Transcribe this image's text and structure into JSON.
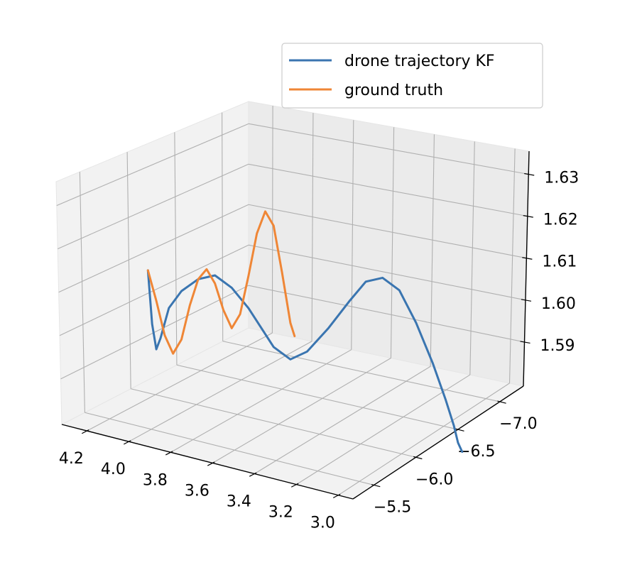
{
  "chart_data": {
    "type": "line",
    "projection": "3d",
    "xlabel": "",
    "ylabel": "",
    "zlabel": "",
    "x_ticks": [
      "4.2",
      "4.0",
      "3.8",
      "3.6",
      "3.4",
      "3.2",
      "3.0"
    ],
    "y_ticks": [
      "−5.5",
      "−6.0",
      "−6.5",
      "−7.0"
    ],
    "z_ticks": [
      "1.59",
      "1.60",
      "1.61",
      "1.62",
      "1.63"
    ],
    "grid": true,
    "legend_position": "upper-right",
    "series": [
      {
        "name": "drone trajectory KF",
        "color": "#3a75b0",
        "points_xyz": [
          [
            4.26,
            -6.05,
            1.609
          ],
          [
            4.24,
            -6.05,
            1.596
          ],
          [
            4.22,
            -6.05,
            1.59
          ],
          [
            4.2,
            -6.05,
            1.593
          ],
          [
            4.16,
            -6.05,
            1.601
          ],
          [
            4.1,
            -6.05,
            1.606
          ],
          [
            4.02,
            -6.05,
            1.61
          ],
          [
            3.94,
            -6.05,
            1.612
          ],
          [
            3.86,
            -6.05,
            1.61
          ],
          [
            3.78,
            -6.05,
            1.606
          ],
          [
            3.72,
            -6.05,
            1.602
          ],
          [
            3.66,
            -6.05,
            1.598
          ],
          [
            3.58,
            -6.05,
            1.596
          ],
          [
            3.5,
            -6.05,
            1.599
          ],
          [
            3.4,
            -6.05,
            1.606
          ],
          [
            3.3,
            -6.05,
            1.614
          ],
          [
            3.22,
            -6.05,
            1.62
          ],
          [
            3.14,
            -6.05,
            1.622
          ],
          [
            3.06,
            -6.05,
            1.62
          ],
          [
            2.98,
            -6.05,
            1.613
          ],
          [
            2.9,
            -6.05,
            1.604
          ],
          [
            2.84,
            -6.05,
            1.596
          ],
          [
            2.8,
            -6.05,
            1.59
          ],
          [
            2.78,
            -6.05,
            1.586
          ],
          [
            2.76,
            -6.05,
            1.584
          ]
        ]
      },
      {
        "name": "ground truth",
        "color": "#ef8636",
        "points_xyz": [
          [
            4.26,
            -6.05,
            1.609
          ],
          [
            4.22,
            -6.05,
            1.602
          ],
          [
            4.18,
            -6.05,
            1.594
          ],
          [
            4.14,
            -6.05,
            1.59
          ],
          [
            4.1,
            -6.05,
            1.594
          ],
          [
            4.06,
            -6.05,
            1.603
          ],
          [
            4.02,
            -6.05,
            1.61
          ],
          [
            3.98,
            -6.05,
            1.613
          ],
          [
            3.94,
            -6.05,
            1.61
          ],
          [
            3.9,
            -6.05,
            1.604
          ],
          [
            3.86,
            -6.05,
            1.6
          ],
          [
            3.82,
            -6.05,
            1.604
          ],
          [
            3.78,
            -6.05,
            1.614
          ],
          [
            3.74,
            -6.05,
            1.625
          ],
          [
            3.7,
            -6.05,
            1.631
          ],
          [
            3.66,
            -6.05,
            1.628
          ],
          [
            3.62,
            -6.05,
            1.617
          ],
          [
            3.58,
            -6.05,
            1.605
          ],
          [
            3.56,
            -6.05,
            1.602
          ]
        ]
      }
    ]
  }
}
